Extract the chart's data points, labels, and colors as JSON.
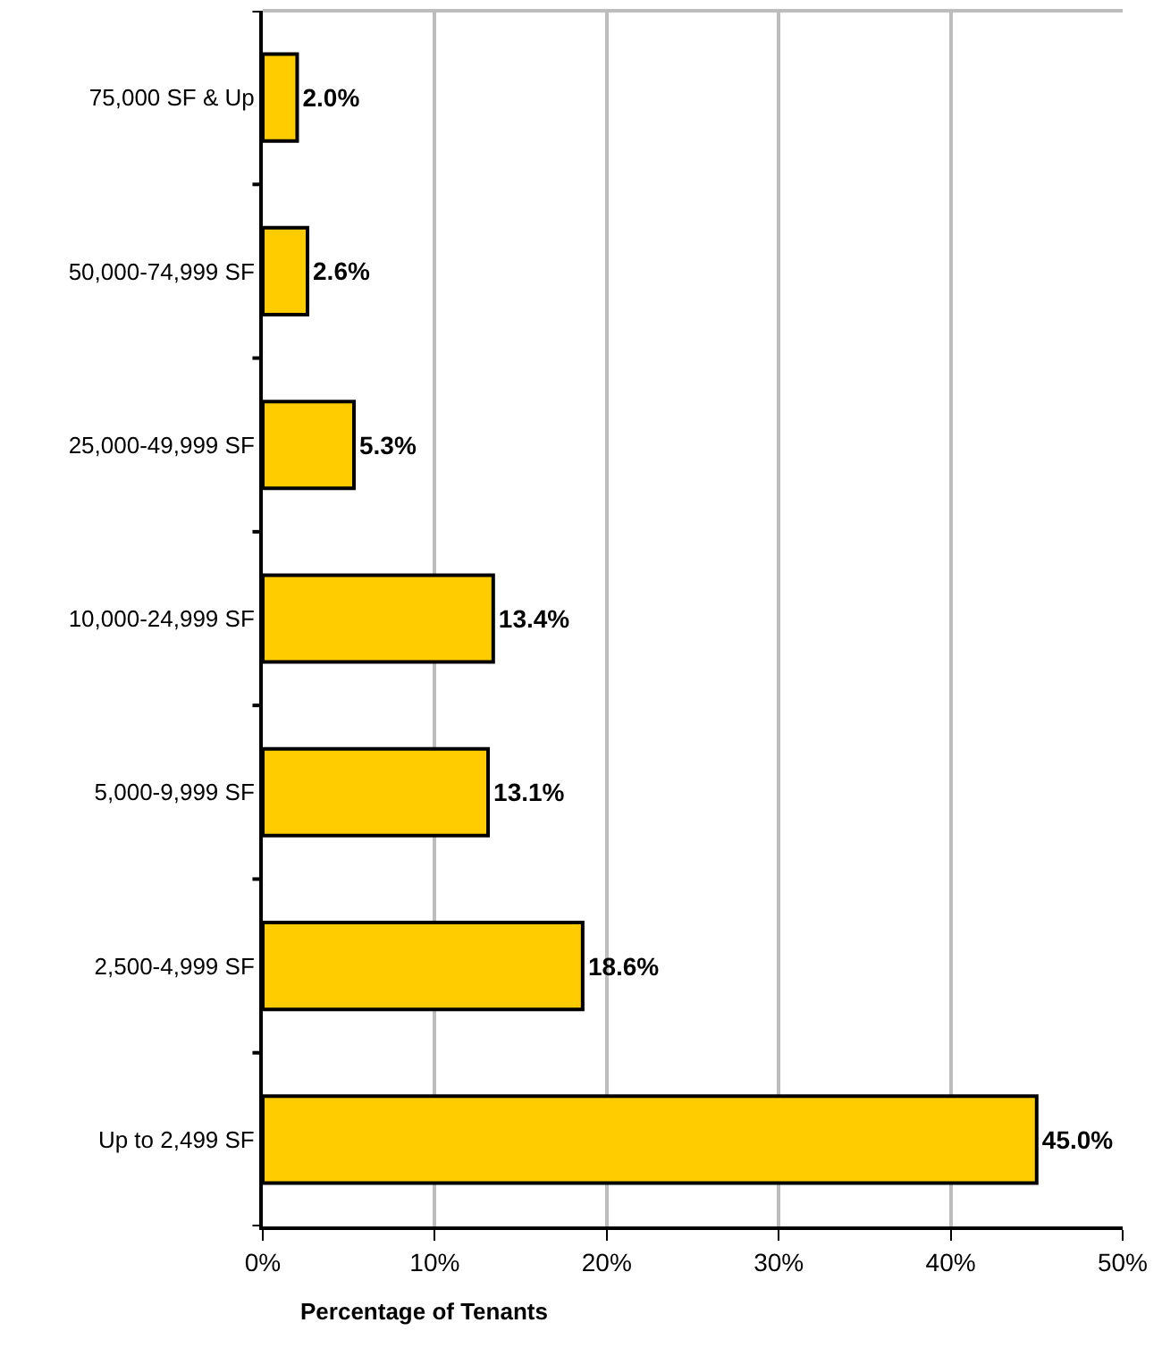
{
  "chart_data": {
    "type": "bar",
    "orientation": "horizontal",
    "xlabel": "Percentage of Tenants",
    "categories": [
      "75,000 SF & Up",
      "50,000-74,999 SF",
      "25,000-49,999 SF",
      "10,000-24,999 SF",
      "5,000-9,999 SF",
      "2,500-4,999 SF",
      "Up to 2,499 SF"
    ],
    "values": [
      2.0,
      2.6,
      5.3,
      13.4,
      13.1,
      18.6,
      45.0
    ],
    "value_labels": [
      "2.0%",
      "2.6%",
      "5.3%",
      "13.4%",
      "13.1%",
      "18.6%",
      "45.0%"
    ],
    "color": "#ffcc00",
    "xlim": [
      0,
      50
    ],
    "xticks": [
      {
        "value": 0,
        "label": "0%"
      },
      {
        "value": 10,
        "label": "10%"
      },
      {
        "value": 20,
        "label": "20%"
      },
      {
        "value": 30,
        "label": "30%"
      },
      {
        "value": 40,
        "label": "40%"
      },
      {
        "value": 50,
        "label": "50%"
      }
    ],
    "grid": "x"
  }
}
